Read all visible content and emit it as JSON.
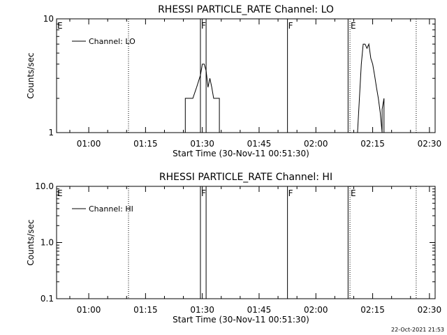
{
  "footer": {
    "timestamp": "22-Oct-2021 21:53"
  },
  "chart_data": [
    {
      "type": "line",
      "title": "RHESSI PARTICLE_RATE Channel: LO",
      "xlabel": "Start Time (30-Nov-11 00:51:30)",
      "ylabel": "Counts/sec",
      "y_scale": "log",
      "ylim": [
        1,
        10
      ],
      "xlim": [
        "00:51:30",
        "02:31:30"
      ],
      "x_ticks": [
        "01:00",
        "01:15",
        "01:30",
        "01:45",
        "02:00",
        "02:15",
        "02:30"
      ],
      "y_ticks": [
        "1",
        "10"
      ],
      "legend": {
        "placement": "top-left",
        "entries": [
          "Channel: LO"
        ]
      },
      "markers": [
        {
          "label": "E",
          "x": "00:51:30",
          "style": "solid"
        },
        {
          "label": "",
          "x": "01:10:30",
          "style": "dotted"
        },
        {
          "label": "F",
          "x": "01:29:30",
          "style": "solid"
        },
        {
          "label": "",
          "x": "01:31:00",
          "style": "solid"
        },
        {
          "label": "F",
          "x": "01:52:30",
          "style": "solid"
        },
        {
          "label": "",
          "x": "02:08:30",
          "style": "solid"
        },
        {
          "label": "E",
          "x": "02:09:00",
          "style": "dotted"
        },
        {
          "label": "",
          "x": "02:26:30",
          "style": "dotted"
        }
      ],
      "series": [
        {
          "name": "Channel: LO",
          "segments": [
            {
              "x": [
                "01:25:30",
                "01:25:30",
                "01:26:30",
                "01:27:00",
                "01:27:30",
                "01:28:30",
                "01:29:30",
                "01:30:00",
                "01:30:30",
                "01:31:00",
                "01:31:30",
                "01:32:00",
                "01:32:30",
                "01:33:00",
                "01:33:30",
                "01:34:00",
                "01:34:30",
                "01:34:30"
              ],
              "y": [
                1,
                2,
                2,
                2,
                2,
                2.5,
                3.2,
                4,
                4,
                3.5,
                2.5,
                3,
                2.5,
                2,
                2,
                2,
                2,
                1
              ]
            },
            {
              "x": [
                "02:11:00",
                "02:11:30",
                "02:12:00",
                "02:12:30",
                "02:13:00",
                "02:13:30",
                "02:14:00",
                "02:14:30",
                "02:15:00",
                "02:15:30",
                "02:16:00",
                "02:16:30",
                "02:17:00",
                "02:17:30",
                "02:17:30",
                "02:18:00",
                "02:18:00"
              ],
              "y": [
                1,
                2,
                4,
                6,
                6,
                5.5,
                6,
                4.5,
                4,
                3.2,
                2.5,
                2,
                1.5,
                1,
                1.6,
                2,
                1
              ]
            }
          ]
        }
      ]
    },
    {
      "type": "line",
      "title": "RHESSI PARTICLE_RATE Channel: HI",
      "xlabel": "Start Time (30-Nov-11 00:51:30)",
      "ylabel": "Counts/sec",
      "y_scale": "log",
      "ylim": [
        0.1,
        10
      ],
      "xlim": [
        "00:51:30",
        "02:31:30"
      ],
      "x_ticks": [
        "01:00",
        "01:15",
        "01:30",
        "01:45",
        "02:00",
        "02:15",
        "02:30"
      ],
      "y_ticks": [
        "0.1",
        "1.0",
        "10.0"
      ],
      "legend": {
        "placement": "top-left",
        "entries": [
          "Channel: HI"
        ]
      },
      "markers": [
        {
          "label": "E",
          "x": "00:51:30",
          "style": "solid"
        },
        {
          "label": "",
          "x": "01:10:30",
          "style": "dotted"
        },
        {
          "label": "F",
          "x": "01:29:30",
          "style": "solid"
        },
        {
          "label": "",
          "x": "01:31:00",
          "style": "solid"
        },
        {
          "label": "F",
          "x": "01:52:30",
          "style": "solid"
        },
        {
          "label": "",
          "x": "02:08:30",
          "style": "solid"
        },
        {
          "label": "E",
          "x": "02:09:00",
          "style": "dotted"
        },
        {
          "label": "",
          "x": "02:26:30",
          "style": "dotted"
        }
      ],
      "series": [
        {
          "name": "Channel: HI",
          "segments": []
        }
      ]
    }
  ]
}
